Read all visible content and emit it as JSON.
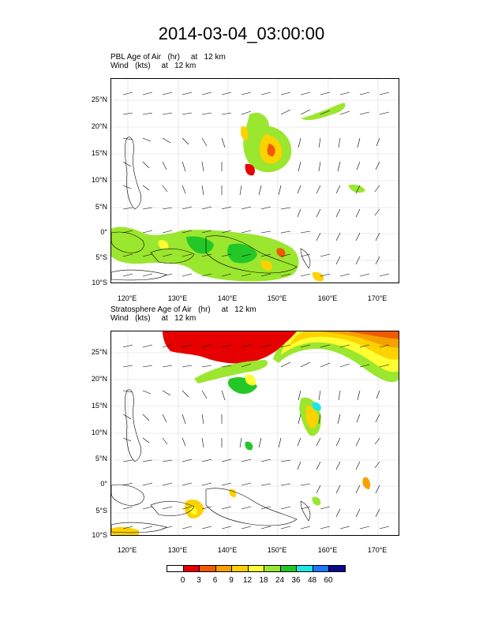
{
  "title": "2014-03-04_03:00:00",
  "panels": [
    {
      "id": "pbl",
      "line1": "PBL Age of Air   (hr)     at   12 km",
      "line2": "Wind   (kts)     at   12 km"
    },
    {
      "id": "strat",
      "line1": "Stratosphere Age of Air   (hr)     at   12 km",
      "line2": "Wind   (kts)     at   12 km"
    }
  ],
  "map": {
    "lon_range": [
      115,
      173
    ],
    "lat_range": [
      -10,
      28
    ],
    "lat_ticks": [
      "25°N",
      "20°N",
      "15°N",
      "10°N",
      "5°N",
      "0°",
      "5°S",
      "10°S"
    ],
    "lon_ticks": [
      "120°E",
      "130°E",
      "140°E",
      "150°E",
      "160°E",
      "170°E"
    ],
    "grid": true
  },
  "colorbar": {
    "labels": [
      "0",
      "3",
      "6",
      "9",
      "12",
      "18",
      "24",
      "36",
      "48",
      "60"
    ],
    "colors": [
      "#ffffff",
      "#e60000",
      "#f05a00",
      "#f7a000",
      "#fcd200",
      "#ffff33",
      "#9be62e",
      "#23c828",
      "#1ee6e6",
      "#1e78ff",
      "#0a0a8c"
    ]
  }
}
